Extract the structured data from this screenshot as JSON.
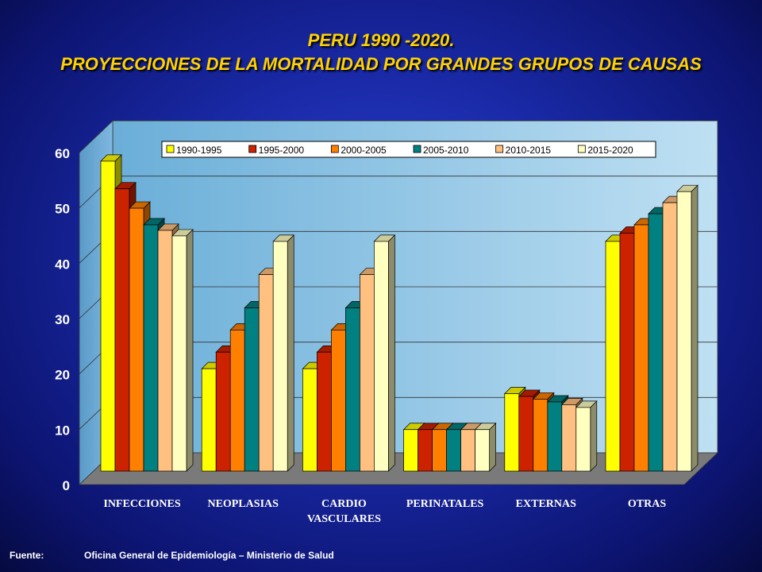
{
  "chart_data": {
    "type": "bar",
    "title": "PERU 1990 -2020.",
    "subtitle": "PROYECCIONES DE LA MORTALIDAD POR GRANDES GRUPOS DE CAUSAS",
    "categories": [
      [
        "INFECCIONES"
      ],
      [
        "NEOPLASIAS"
      ],
      [
        "CARDIO",
        "VASCULARES"
      ],
      [
        "PERINATALES"
      ],
      [
        "EXTERNAS"
      ],
      [
        "OTRAS"
      ]
    ],
    "series": [
      {
        "name": "1990-1995",
        "color": "#ffff00",
        "values": [
          56,
          18.5,
          18.5,
          7.5,
          14,
          41.5
        ]
      },
      {
        "name": "1995-2000",
        "color": "#cc2200",
        "values": [
          51,
          21.5,
          21.5,
          7.5,
          13.5,
          43
        ]
      },
      {
        "name": "2000-2005",
        "color": "#ff8000",
        "values": [
          47.5,
          25.5,
          25.5,
          7.5,
          13,
          44.5
        ]
      },
      {
        "name": "2005-2010",
        "color": "#008080",
        "values": [
          44.5,
          29.5,
          29.5,
          7.5,
          12.5,
          46.5
        ]
      },
      {
        "name": "2010-2015",
        "color": "#ffc080",
        "values": [
          43.5,
          35.5,
          35.5,
          7.5,
          12,
          48.5
        ]
      },
      {
        "name": "2015-2020",
        "color": "#ffffc0",
        "values": [
          42.5,
          41.5,
          41.5,
          7.5,
          11.5,
          50.5
        ]
      }
    ],
    "yticks": [
      0,
      10,
      20,
      30,
      40,
      50,
      60
    ],
    "ylim": [
      0,
      60
    ],
    "grid": true,
    "legend": "top"
  },
  "footer": {
    "label": "Fuente:",
    "text": "Oficina General de Epidemiología – Ministerio de Salud"
  }
}
